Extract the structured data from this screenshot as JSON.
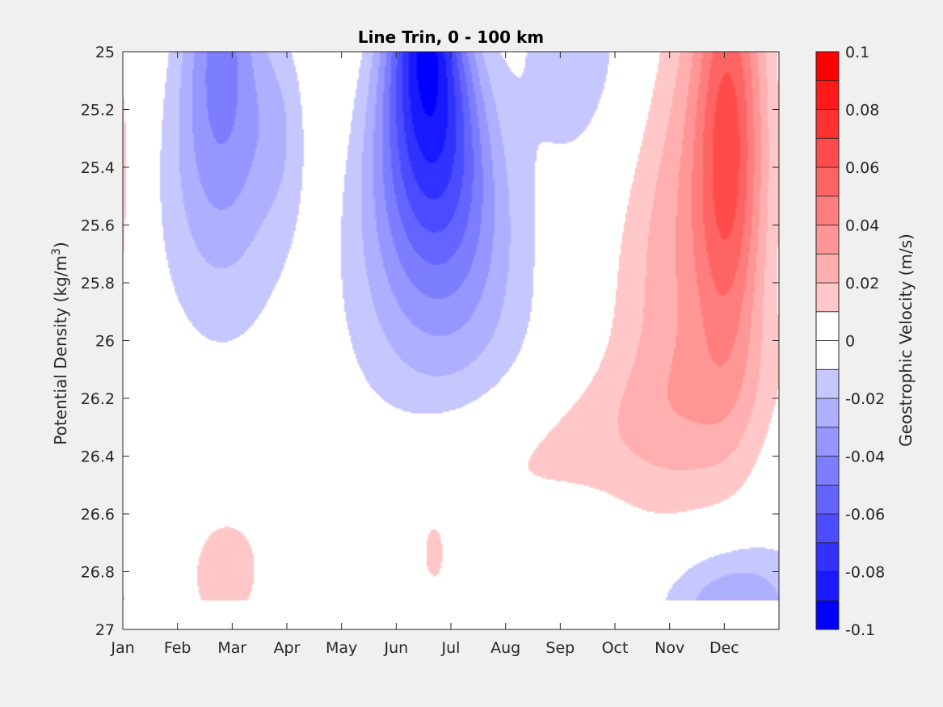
{
  "chart_data": {
    "type": "heatmap",
    "title": "Line Trin, 0 - 100 km",
    "xlabel": "",
    "ylabel_base": "Potential Density (kg/m",
    "ylabel_sup": "3",
    "ylabel_close": ")",
    "colorbar_label": "Geostrophic Velocity (m/s)",
    "x_ticks": [
      "Jan",
      "Feb",
      "Mar",
      "Apr",
      "May",
      "Jun",
      "Jul",
      "Aug",
      "Sep",
      "Oct",
      "Nov",
      "Dec"
    ],
    "x_range_months": [
      0,
      12
    ],
    "y_ticks": [
      "25",
      "25.2",
      "25.4",
      "25.6",
      "25.8",
      "26",
      "26.2",
      "26.4",
      "26.6",
      "26.8",
      "27"
    ],
    "y_tick_values": [
      25,
      25.2,
      25.4,
      25.6,
      25.8,
      26,
      26.2,
      26.4,
      26.6,
      26.8,
      27
    ],
    "ylim": [
      25,
      27
    ],
    "y_reversed": true,
    "data_ylim": [
      25,
      26.9
    ],
    "clim": [
      -0.1,
      0.1
    ],
    "colorbar_ticks": [
      "0.1",
      "0.08",
      "0.06",
      "0.04",
      "0.02",
      "0",
      "-0.02",
      "-0.04",
      "-0.06",
      "-0.08",
      "-0.1"
    ],
    "colorbar_tick_values": [
      0.1,
      0.08,
      0.06,
      0.04,
      0.02,
      0,
      -0.02,
      -0.04,
      -0.06,
      -0.08,
      -0.1
    ],
    "levels": [
      -0.1,
      -0.09,
      -0.08,
      -0.07,
      -0.06,
      -0.05,
      -0.04,
      -0.03,
      -0.02,
      -0.01,
      0,
      0.01,
      0.02,
      0.03,
      0.04,
      0.05,
      0.06,
      0.07,
      0.08,
      0.09,
      0.1
    ],
    "features": [
      {
        "name": "summer-westward-core",
        "sign": "negative",
        "month_center": 5.65,
        "month_halfwidth": 1.2,
        "density_range": [
          25,
          26.3
        ],
        "peak_velocity": -0.09
      },
      {
        "name": "spring-westward-lobe",
        "sign": "negative",
        "month_center": 1.8,
        "month_halfwidth": 0.9,
        "density_range": [
          25,
          25.95
        ],
        "peak_velocity": -0.04
      },
      {
        "name": "early-autumn-westward",
        "sign": "negative",
        "month_center": 8.5,
        "month_halfwidth": 1.5,
        "density_range": [
          25,
          25.3
        ],
        "peak_velocity": -0.02
      },
      {
        "name": "winter-eastward-core",
        "sign": "positive",
        "month_center": 11.2,
        "month_halfwidth": 0.8,
        "density_range": [
          25,
          26.15
        ],
        "peak_velocity": 0.05
      },
      {
        "name": "deep-eastward-band",
        "sign": "positive",
        "month_center": 7.5,
        "month_halfwidth": 3.5,
        "density_range": [
          26.2,
          26.9
        ],
        "peak_velocity": 0.015
      },
      {
        "name": "march-deep-eastward",
        "sign": "positive",
        "month_center": 1.8,
        "month_halfwidth": 0.6,
        "density_range": [
          26.6,
          26.9
        ],
        "peak_velocity": 0.015
      },
      {
        "name": "december-deep-westward",
        "sign": "negative",
        "month_center": 11.0,
        "month_halfwidth": 1.2,
        "density_range": [
          26.62,
          26.9
        ],
        "peak_velocity": -0.03
      }
    ],
    "colors": {
      "positive_max": "#ff0000",
      "negative_max": "#0000ff",
      "zero": "#ffffff",
      "axis": "#262626",
      "figure_bg": "#f0f0f0"
    }
  }
}
